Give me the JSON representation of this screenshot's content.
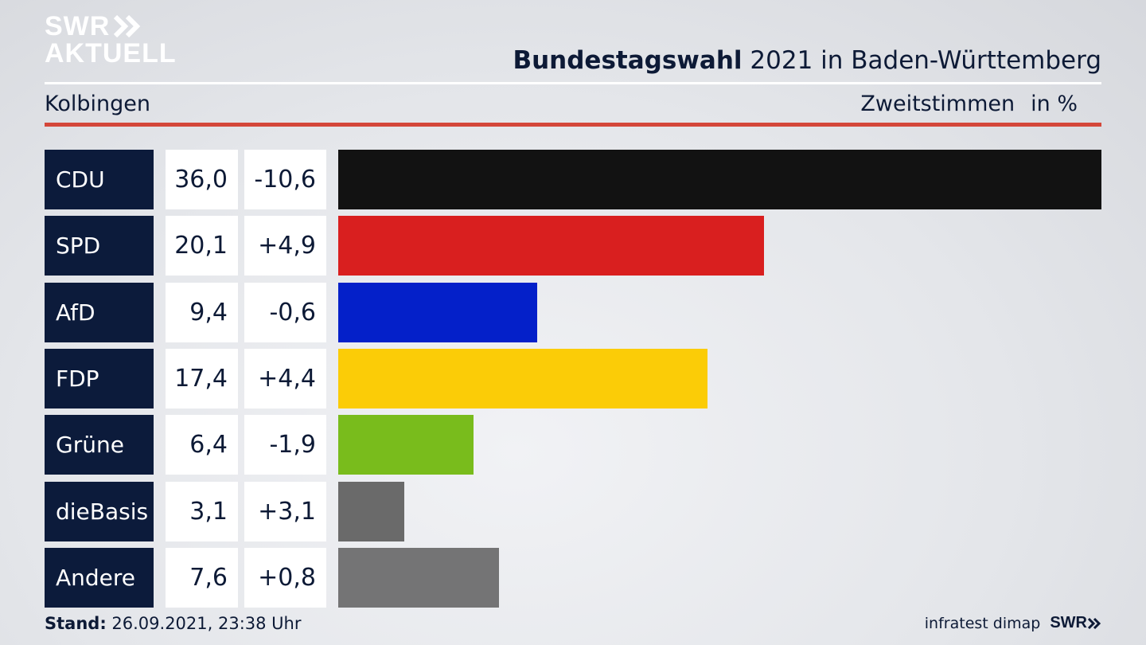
{
  "brand": {
    "line1": "SWR",
    "line2": "AKTUELL"
  },
  "header": {
    "title_bold": "Bundestagswahl",
    "title_rest": " 2021 in Baden-Württemberg",
    "location": "Kolbingen",
    "metric": "Zweitstimmen",
    "unit": "in %"
  },
  "chart_data": {
    "type": "bar",
    "orientation": "horizontal",
    "categories": [
      "CDU",
      "SPD",
      "AfD",
      "FDP",
      "Grüne",
      "dieBasis",
      "Andere"
    ],
    "values": [
      36.0,
      20.1,
      9.4,
      17.4,
      6.4,
      3.1,
      7.6
    ],
    "value_labels": [
      "36,0",
      "20,1",
      "9,4",
      "17,4",
      "6,4",
      "3,1",
      "7,6"
    ],
    "diff_labels": [
      "-10,6",
      "+4,9",
      "-0,6",
      "+4,4",
      "-1,9",
      "+3,1",
      "+0,8"
    ],
    "colors": [
      "#121212",
      "#d91f1f",
      "#0420c9",
      "#fbcc07",
      "#79bc1c",
      "#6a6a6a",
      "#747475"
    ],
    "xlim": [
      0,
      36.0
    ]
  },
  "footer": {
    "stand_label": "Stand:",
    "stand_value": " 26.09.2021, 23:38 Uhr",
    "source": "infratest dimap",
    "logo": "SWR"
  }
}
